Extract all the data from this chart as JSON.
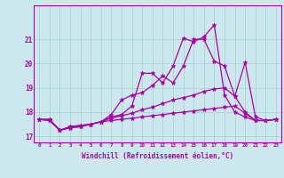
{
  "background_color": "#cce8ef",
  "grid_color": "#aad4cc",
  "line_color": "#aa00aa",
  "xlabel": "Windchill (Refroidissement éolien,°C)",
  "xlim": [
    -0.5,
    23.5
  ],
  "ylim": [
    16.75,
    22.4
  ],
  "yticks": [
    17,
    18,
    19,
    20,
    21
  ],
  "xticks": [
    0,
    1,
    2,
    3,
    4,
    5,
    6,
    7,
    8,
    9,
    10,
    11,
    12,
    13,
    14,
    15,
    16,
    17,
    18,
    19,
    20,
    21,
    22,
    23
  ],
  "series": [
    [
      17.7,
      17.7,
      17.25,
      17.4,
      17.45,
      17.5,
      17.6,
      17.8,
      17.9,
      18.25,
      19.6,
      19.6,
      19.2,
      19.9,
      21.05,
      20.9,
      21.1,
      21.6,
      18.7,
      18.0,
      17.8,
      17.65,
      17.65,
      17.7
    ],
    [
      17.7,
      17.7,
      17.25,
      17.4,
      17.45,
      17.5,
      17.6,
      17.9,
      18.5,
      18.7,
      18.8,
      19.1,
      19.5,
      19.2,
      19.9,
      21.0,
      21.0,
      20.1,
      19.9,
      18.65,
      20.05,
      17.8,
      17.65,
      17.7
    ],
    [
      17.7,
      17.65,
      17.25,
      17.35,
      17.4,
      17.5,
      17.6,
      17.75,
      17.85,
      17.95,
      18.1,
      18.2,
      18.35,
      18.5,
      18.6,
      18.7,
      18.85,
      18.95,
      19.0,
      18.65,
      18.0,
      17.65,
      17.65,
      17.7
    ],
    [
      17.7,
      17.65,
      17.25,
      17.35,
      17.4,
      17.5,
      17.6,
      17.65,
      17.7,
      17.75,
      17.8,
      17.85,
      17.9,
      17.95,
      18.0,
      18.05,
      18.1,
      18.15,
      18.2,
      18.25,
      17.95,
      17.65,
      17.65,
      17.7
    ]
  ]
}
